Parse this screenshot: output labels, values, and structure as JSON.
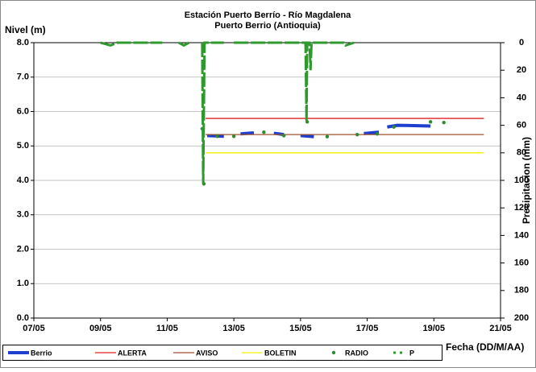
{
  "chart_data": {
    "type": "line",
    "title": "Estación Puerto Berrío - Río Magdalena",
    "subtitle": "Puerto Berrio (Antioquia)",
    "y_label": "Nivel (m)",
    "y2_label": "Precipitacion (mm)",
    "x_label": "Fecha (DD/M/AA)",
    "xlim": [
      7,
      21
    ],
    "xticks": [
      {
        "value": 7,
        "label": "07/05"
      },
      {
        "value": 9,
        "label": "09/05"
      },
      {
        "value": 11,
        "label": "11/05"
      },
      {
        "value": 13,
        "label": "13/05"
      },
      {
        "value": 15,
        "label": "15/05"
      },
      {
        "value": 17,
        "label": "17/05"
      },
      {
        "value": 19,
        "label": "19/05"
      },
      {
        "value": 21,
        "label": "21/05"
      }
    ],
    "ylim": [
      0,
      8
    ],
    "yticks": [
      {
        "value": 0,
        "label": "0.0"
      },
      {
        "value": 1,
        "label": "1.0"
      },
      {
        "value": 2,
        "label": "2.0"
      },
      {
        "value": 3,
        "label": "3.0"
      },
      {
        "value": 4,
        "label": "4.0"
      },
      {
        "value": 5,
        "label": "5.0"
      },
      {
        "value": 6,
        "label": "6.0"
      },
      {
        "value": 7,
        "label": "7.0"
      },
      {
        "value": 8,
        "label": "8.0"
      }
    ],
    "y2lim": [
      200,
      0
    ],
    "y2ticks": [
      0,
      20,
      40,
      60,
      80,
      100,
      120,
      140,
      160,
      180,
      200
    ],
    "grid": true,
    "legend": "bottom",
    "series": [
      {
        "name": "Berrio",
        "color": "#1f3fd0",
        "mode": "line",
        "width": 4,
        "x": [
          12.2,
          12.7,
          13.0,
          13.2,
          13.6,
          13.9,
          14.2,
          14.5,
          14.7,
          15.0,
          15.4,
          15.6,
          16.9,
          17.35,
          17.5,
          17.6,
          17.9,
          18.9
        ],
        "values": [
          5.3,
          5.28,
          null,
          5.35,
          5.38,
          null,
          5.37,
          5.33,
          null,
          5.3,
          5.27,
          null,
          5.36,
          5.4,
          null,
          5.55,
          5.6,
          5.58
        ]
      },
      {
        "name": "ALERTA",
        "color": "#e02020",
        "mode": "line",
        "width": 1.3,
        "x": [
          12.15,
          20.5
        ],
        "values": [
          5.8,
          5.8
        ]
      },
      {
        "name": "AVISO",
        "color": "#a0522d",
        "mode": "line",
        "width": 1.3,
        "x": [
          12.15,
          20.5
        ],
        "values": [
          5.33,
          5.33
        ]
      },
      {
        "name": "BOLETIN",
        "color": "#f0f000",
        "mode": "line",
        "width": 1.3,
        "x": [
          12.15,
          20.5
        ],
        "values": [
          4.8,
          4.8
        ]
      },
      {
        "name": "RADIO",
        "color": "#2e8b2e",
        "mode": "dots",
        "x": [
          12.05,
          12.1,
          12.5,
          13.0,
          13.9,
          14.5,
          15.2,
          15.8,
          16.7,
          17.3,
          17.8,
          18.9,
          19.3
        ],
        "values": [
          5.5,
          3.9,
          5.28,
          5.28,
          5.4,
          5.3,
          5.7,
          5.27,
          5.33,
          5.35,
          5.55,
          5.7,
          5.68
        ]
      },
      {
        "name": "P",
        "color": "#2e9a2e",
        "mode": "dashed",
        "width": 3,
        "axis": "y2",
        "x": [
          9.0,
          9.3,
          9.5,
          10.85,
          11.1,
          11.35,
          11.5,
          11.65,
          11.9,
          12.05,
          12.08,
          12.12,
          12.7,
          12.9,
          13.0,
          15.15,
          15.18,
          15.2,
          15.27,
          15.3,
          15.33,
          16.3,
          16.35,
          16.6
        ],
        "values": [
          0,
          2,
          0,
          0,
          null,
          0,
          2,
          0,
          null,
          0,
          102,
          0,
          0,
          null,
          0,
          0,
          57,
          0,
          0,
          20,
          0,
          0,
          2,
          0
        ]
      }
    ]
  }
}
